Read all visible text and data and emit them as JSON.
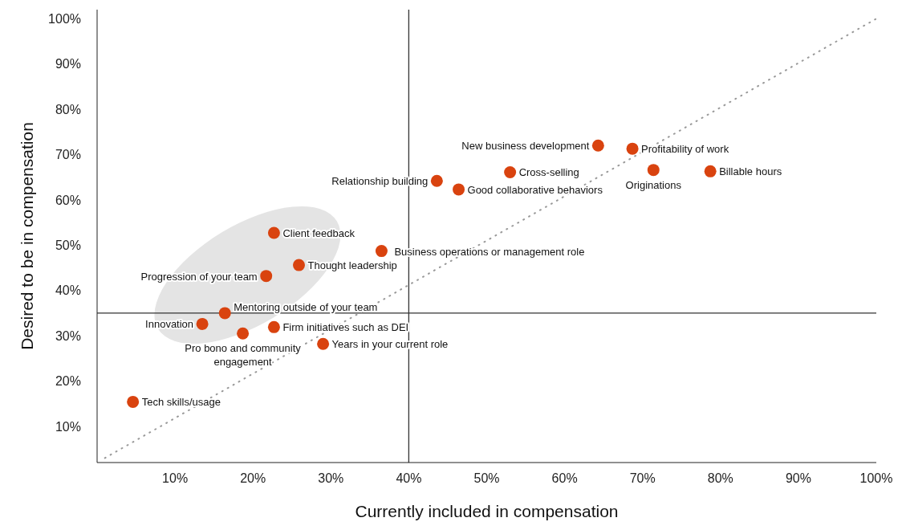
{
  "chart_data": {
    "type": "scatter",
    "xlabel": "Currently included in compensation",
    "ylabel": "Desired to be in compensation",
    "xlim": [
      0,
      100
    ],
    "ylim": [
      2,
      102
    ],
    "xticks": [
      {
        "value": 10,
        "label": "10%"
      },
      {
        "value": 20,
        "label": "20%"
      },
      {
        "value": 30,
        "label": "30%"
      },
      {
        "value": 40,
        "label": "40%"
      },
      {
        "value": 50,
        "label": "50%"
      },
      {
        "value": 60,
        "label": "60%"
      },
      {
        "value": 70,
        "label": "70%"
      },
      {
        "value": 80,
        "label": "80%"
      },
      {
        "value": 90,
        "label": "90%"
      },
      {
        "value": 100,
        "label": "100%"
      }
    ],
    "yticks": [
      {
        "value": 10,
        "label": "10%"
      },
      {
        "value": 20,
        "label": "20%"
      },
      {
        "value": 30,
        "label": "30%"
      },
      {
        "value": 40,
        "label": "40%"
      },
      {
        "value": 50,
        "label": "50%"
      },
      {
        "value": 60,
        "label": "60%"
      },
      {
        "value": 70,
        "label": "70%"
      },
      {
        "value": 80,
        "label": "80%"
      },
      {
        "value": 90,
        "label": "90%"
      },
      {
        "value": 100,
        "label": "100%"
      }
    ],
    "marker": "circle",
    "series": [
      {
        "type": "line",
        "color": "#999999",
        "line_style": "dotted",
        "marker": "none",
        "x": [
          1,
          100
        ],
        "values": [
          3,
          100
        ]
      },
      {
        "type": "scatter",
        "color": "#d9430f",
        "x": [
          4.6,
          13.5,
          16.4,
          18.7,
          21.7,
          22.7,
          22.7,
          25.9,
          29.0,
          36.5,
          43.6,
          46.4,
          53.0,
          64.3,
          68.7,
          71.4,
          78.7
        ],
        "values": [
          15.4,
          32.6,
          35.0,
          30.5,
          43.2,
          52.7,
          31.9,
          45.6,
          28.2,
          48.7,
          64.2,
          62.3,
          66.1,
          72.0,
          71.3,
          66.6,
          66.3
        ]
      }
    ],
    "ref_lines": [
      {
        "axis": "x",
        "value": 40,
        "color": "#333333"
      },
      {
        "axis": "y",
        "value": 35,
        "color": "#333333"
      }
    ],
    "annotations": [
      {
        "text": "Tech skills/usage",
        "x": 4.6,
        "y": 15.4
      },
      {
        "text": "Innovation",
        "x": 13.5,
        "y": 32.6
      },
      {
        "text": "Mentoring outside of your team",
        "x": 16.4,
        "y": 35.0
      },
      {
        "text": "Pro bono and community engagement",
        "x": 18.7,
        "y": 30.5
      },
      {
        "text": "Progression of your team",
        "x": 21.7,
        "y": 43.2
      },
      {
        "text": "Client feedback",
        "x": 22.7,
        "y": 52.7
      },
      {
        "text": "Firm initiatives such as DEI",
        "x": 22.7,
        "y": 31.9
      },
      {
        "text": "Thought leadership",
        "x": 25.9,
        "y": 45.6
      },
      {
        "text": "Years in your current role",
        "x": 29.0,
        "y": 28.2
      },
      {
        "text": "Business operations or management role",
        "x": 36.5,
        "y": 48.7
      },
      {
        "text": "Relationship building",
        "x": 43.6,
        "y": 64.2
      },
      {
        "text": "Good collaborative behaviors",
        "x": 46.4,
        "y": 62.3
      },
      {
        "text": "Cross-selling",
        "x": 53.0,
        "y": 66.1
      },
      {
        "text": "New business development",
        "x": 64.3,
        "y": 72.0
      },
      {
        "text": "Profitability of work",
        "x": 68.7,
        "y": 71.3
      },
      {
        "text": "Originations",
        "x": 71.4,
        "y": 66.6
      },
      {
        "text": "Billable hours",
        "x": 78.7,
        "y": 66.3
      }
    ]
  }
}
